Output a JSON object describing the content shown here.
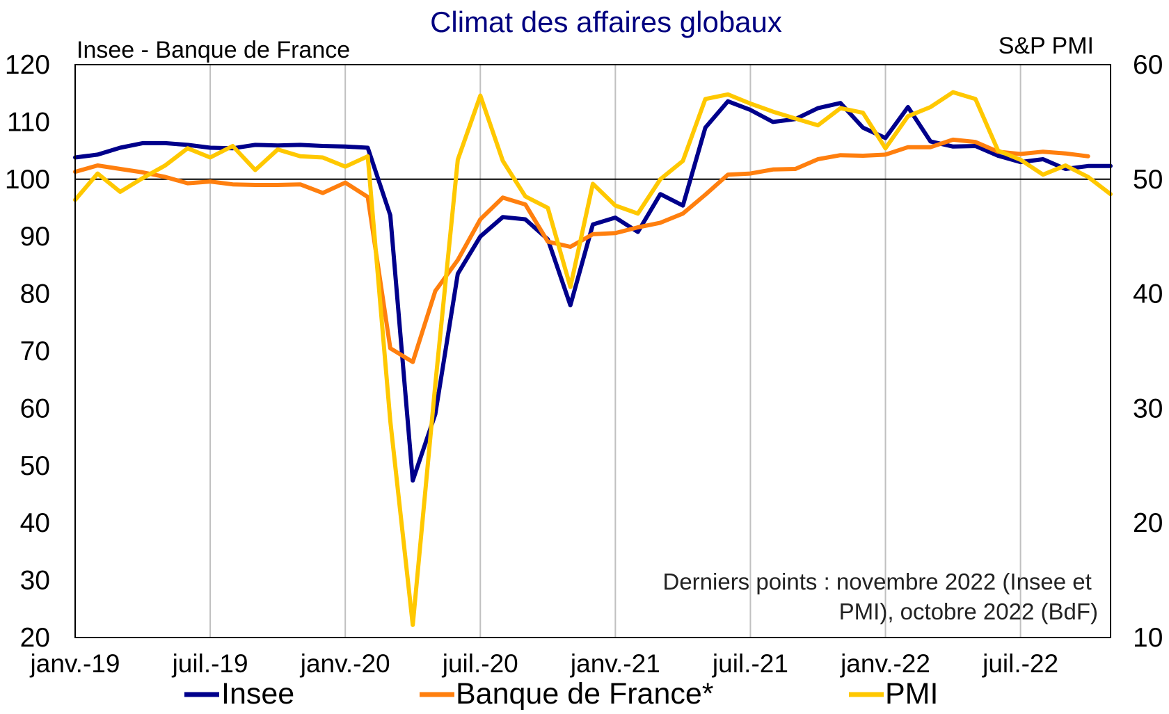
{
  "chart_data": {
    "type": "line",
    "title": "Climat des affaires globaux",
    "left_axis_label": "Insee - Banque de France",
    "right_axis_label": "S&P PMI",
    "left_ylim": [
      20,
      120
    ],
    "left_yticks": [
      20,
      30,
      40,
      50,
      60,
      70,
      80,
      90,
      100,
      110,
      120
    ],
    "right_ylim": [
      10,
      60
    ],
    "right_yticks": [
      10,
      20,
      30,
      40,
      50,
      60
    ],
    "x_months": [
      "2019-01",
      "2019-02",
      "2019-03",
      "2019-04",
      "2019-05",
      "2019-06",
      "2019-07",
      "2019-08",
      "2019-09",
      "2019-10",
      "2019-11",
      "2019-12",
      "2020-01",
      "2020-02",
      "2020-03",
      "2020-04",
      "2020-05",
      "2020-06",
      "2020-07",
      "2020-08",
      "2020-09",
      "2020-10",
      "2020-11",
      "2020-12",
      "2021-01",
      "2021-02",
      "2021-03",
      "2021-04",
      "2021-05",
      "2021-06",
      "2021-07",
      "2021-08",
      "2021-09",
      "2021-10",
      "2021-11",
      "2021-12",
      "2022-01",
      "2022-02",
      "2022-03",
      "2022-04",
      "2022-05",
      "2022-06",
      "2022-07",
      "2022-08",
      "2022-09",
      "2022-10",
      "2022-11"
    ],
    "x_tick_labels": [
      "janv.-19",
      "juil.-19",
      "janv.-20",
      "juil.-20",
      "janv.-21",
      "juil.-21",
      "janv.-22",
      "juil.-22"
    ],
    "reference_line": 100,
    "grid": "vertical",
    "legend_position": "bottom",
    "series": [
      {
        "name": "Insee",
        "axis": "left",
        "color": "#00008b",
        "values": [
          103.8,
          104.3,
          105.5,
          106.3,
          106.3,
          106.0,
          105.5,
          105.4,
          106.0,
          105.9,
          106.0,
          105.8,
          105.7,
          105.5,
          93.7,
          47.4,
          59.0,
          83.5,
          90.0,
          93.4,
          93.0,
          89.5,
          78.0,
          92.1,
          93.3,
          90.8,
          97.4,
          95.4,
          109.0,
          113.6,
          112.1,
          110.0,
          110.5,
          112.4,
          113.3,
          109.0,
          107.2,
          112.6,
          106.6,
          105.7,
          105.8,
          104.1,
          103.0,
          103.5,
          101.8,
          102.3,
          102.3
        ]
      },
      {
        "name": "Banque de France*",
        "axis": "left",
        "color": "#ff7f0e",
        "values": [
          101.3,
          102.4,
          101.8,
          101.2,
          100.4,
          99.3,
          99.6,
          99.1,
          99.0,
          99.0,
          99.1,
          97.6,
          99.4,
          96.9,
          70.5,
          68.1,
          80.5,
          85.9,
          93.0,
          96.8,
          95.6,
          89.1,
          88.2,
          90.4,
          90.6,
          91.6,
          92.4,
          94.0,
          97.3,
          100.8,
          101.0,
          101.7,
          101.8,
          103.5,
          104.2,
          104.1,
          104.3,
          105.6,
          105.6,
          106.9,
          106.5,
          104.8,
          104.4,
          104.8,
          104.5,
          104.0
        ]
      },
      {
        "name": "PMI",
        "axis": "right",
        "color": "#ffc800",
        "values": [
          48.2,
          50.5,
          48.9,
          50.1,
          51.2,
          52.7,
          51.9,
          52.9,
          50.8,
          52.6,
          52.0,
          51.9,
          51.1,
          52.0,
          28.9,
          11.1,
          32.1,
          51.7,
          57.3,
          51.6,
          48.5,
          47.5,
          40.6,
          49.6,
          47.7,
          47.0,
          50.0,
          51.6,
          57.0,
          57.4,
          56.6,
          55.9,
          55.3,
          54.7,
          56.2,
          55.8,
          52.7,
          55.5,
          56.3,
          57.6,
          57.0,
          52.5,
          51.7,
          50.4,
          51.2,
          50.2,
          48.7
        ]
      }
    ],
    "annotation": [
      "Derniers points : novembre 2022 (Insee et",
      "PMI), octobre 2022 (BdF)"
    ]
  }
}
